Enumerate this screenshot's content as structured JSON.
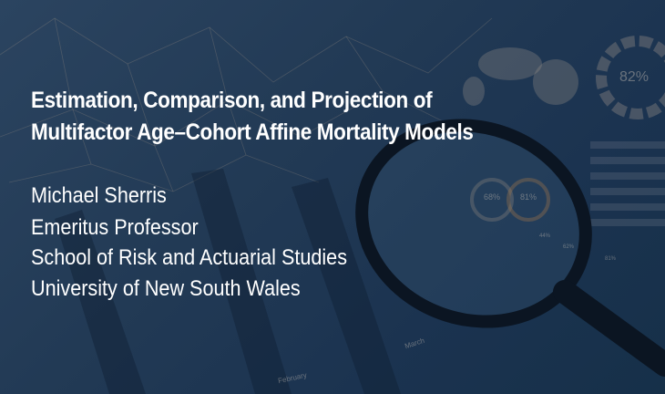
{
  "title": {
    "line1": "Estimation, Comparison, and Projection of",
    "line2": "Multifactor Age–Cohort Affine Mortality Models"
  },
  "presenter": {
    "name": "Michael Sherris",
    "position": "Emeritus Professor",
    "school": "School of Risk and Actuarial Studies",
    "university": "University of New South Wales"
  },
  "background_labels": {
    "donut_pct": "82%",
    "ring1_pct": "68%",
    "ring2_pct": "81%",
    "bar1_pct": "44%",
    "bar2_pct": "62%",
    "bar3_pct": "81%",
    "month1": "March",
    "month2": "February"
  },
  "colors": {
    "background": "#223a55",
    "text": "#ffffff",
    "accent": "#8a6a4a"
  }
}
